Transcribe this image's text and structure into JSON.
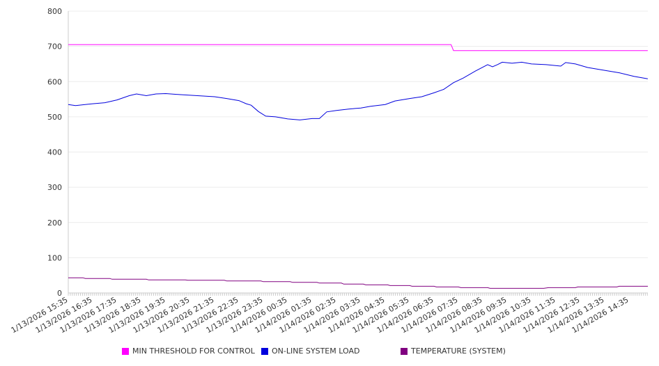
{
  "chart_data": {
    "type": "line",
    "title": "",
    "xlabel": "",
    "ylabel": "",
    "ylim": [
      0,
      800
    ],
    "yticks": [
      "0",
      "100",
      "200",
      "300",
      "400",
      "500",
      "600",
      "700",
      "800"
    ],
    "x_unit": "hours since 1/13/2026 15:35",
    "xticks": [
      "1/13/2026 15:35",
      "1/13/2026 16:35",
      "1/13/2026 17:35",
      "1/13/2026 18:35",
      "1/13/2026 19:35",
      "1/13/2026 20:35",
      "1/13/2026 21:35",
      "1/13/2026 22:35",
      "1/13/2026 23:35",
      "1/14/2026 00:35",
      "1/14/2026 01:35",
      "1/14/2026 02:35",
      "1/14/2026 03:35",
      "1/14/2026 04:35",
      "1/14/2026 05:35",
      "1/14/2026 06:35",
      "1/14/2026 07:35",
      "1/14/2026 08:35",
      "1/14/2026 09:35",
      "1/14/2026 10:35",
      "1/14/2026 11:35",
      "1/14/2026 12:35",
      "1/14/2026 13:35",
      "1/14/2026 14:35"
    ],
    "xlim": [
      0,
      23.77
    ],
    "grid": true,
    "legend_position": "bottom",
    "series": [
      {
        "name": "MIN THRESHOLD FOR CONTROL",
        "color": "#ff00ff",
        "points": [
          [
            0,
            705
          ],
          [
            15.7,
            705
          ],
          [
            15.8,
            688
          ],
          [
            23.77,
            688
          ]
        ]
      },
      {
        "name": "ON-LINE SYSTEM LOAD",
        "color": "#0000dd",
        "points": [
          [
            0,
            535
          ],
          [
            0.3,
            532
          ],
          [
            1,
            537
          ],
          [
            1.5,
            540
          ],
          [
            2,
            548
          ],
          [
            2.5,
            560
          ],
          [
            2.8,
            565
          ],
          [
            3.2,
            560
          ],
          [
            3.6,
            565
          ],
          [
            4,
            566
          ],
          [
            4.6,
            563
          ],
          [
            5.3,
            560
          ],
          [
            6,
            557
          ],
          [
            6.5,
            552
          ],
          [
            7,
            546
          ],
          [
            7.3,
            537
          ],
          [
            7.5,
            533
          ],
          [
            7.8,
            515
          ],
          [
            8.1,
            502
          ],
          [
            8.5,
            500
          ],
          [
            9,
            494
          ],
          [
            9.5,
            491
          ],
          [
            10,
            495
          ],
          [
            10.3,
            495
          ],
          [
            10.6,
            514
          ],
          [
            11,
            518
          ],
          [
            11.5,
            522
          ],
          [
            12,
            525
          ],
          [
            12.4,
            530
          ],
          [
            13,
            535
          ],
          [
            13.4,
            545
          ],
          [
            14,
            552
          ],
          [
            14.5,
            557
          ],
          [
            15,
            568
          ],
          [
            15.4,
            578
          ],
          [
            15.8,
            597
          ],
          [
            16.2,
            610
          ],
          [
            16.7,
            630
          ],
          [
            17.2,
            648
          ],
          [
            17.4,
            642
          ],
          [
            17.6,
            648
          ],
          [
            17.8,
            655
          ],
          [
            18.2,
            652
          ],
          [
            18.6,
            655
          ],
          [
            19,
            650
          ],
          [
            19.6,
            648
          ],
          [
            20.2,
            644
          ],
          [
            20.4,
            654
          ],
          [
            20.8,
            650
          ],
          [
            21.3,
            640
          ],
          [
            22,
            632
          ],
          [
            22.6,
            625
          ],
          [
            23.2,
            615
          ],
          [
            23.77,
            608
          ]
        ]
      },
      {
        "name": "TEMPERATURE (SYSTEM)",
        "color": "#800080",
        "points": [
          [
            0,
            43
          ],
          [
            0.6,
            43
          ],
          [
            0.7,
            41
          ],
          [
            1.7,
            41
          ],
          [
            1.8,
            39
          ],
          [
            3.2,
            39
          ],
          [
            3.3,
            37
          ],
          [
            4.8,
            37
          ],
          [
            4.9,
            36
          ],
          [
            6.4,
            36
          ],
          [
            6.5,
            34
          ],
          [
            7.9,
            34
          ],
          [
            8,
            32
          ],
          [
            9.1,
            32
          ],
          [
            9.2,
            30
          ],
          [
            10.2,
            30
          ],
          [
            10.3,
            28
          ],
          [
            11.2,
            28
          ],
          [
            11.3,
            25
          ],
          [
            12.1,
            25
          ],
          [
            12.2,
            23
          ],
          [
            13.1,
            23
          ],
          [
            13.2,
            21
          ],
          [
            14,
            21
          ],
          [
            14.1,
            19
          ],
          [
            15,
            19
          ],
          [
            15.1,
            17
          ],
          [
            16,
            17
          ],
          [
            16.1,
            15
          ],
          [
            17.2,
            15
          ],
          [
            17.3,
            13
          ],
          [
            19.5,
            13
          ],
          [
            19.7,
            15
          ],
          [
            20.8,
            15
          ],
          [
            20.9,
            17
          ],
          [
            22.5,
            17
          ],
          [
            22.6,
            19
          ],
          [
            24,
            19
          ]
        ]
      }
    ]
  },
  "legend": [
    "MIN THRESHOLD FOR CONTROL",
    "ON-LINE SYSTEM LOAD",
    "TEMPERATURE (SYSTEM)"
  ]
}
